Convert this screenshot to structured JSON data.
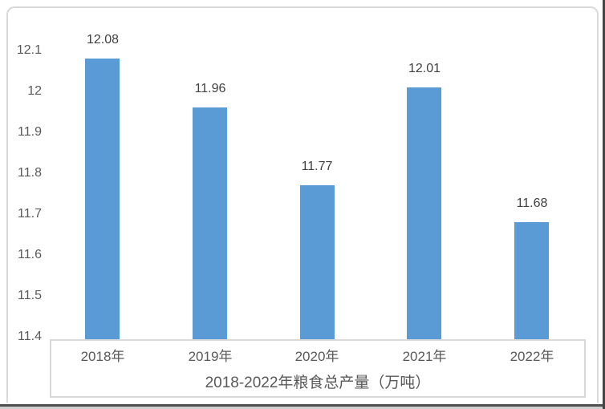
{
  "chart_data": {
    "type": "bar",
    "title": "2018-2022年粮食总产量（万吨）",
    "categories": [
      "2018年",
      "2019年",
      "2020年",
      "2021年",
      "2022年"
    ],
    "values": [
      12.08,
      11.96,
      11.77,
      12.01,
      11.68
    ],
    "value_labels": [
      "12.08",
      "11.96",
      "11.77",
      "12.01",
      "11.68"
    ],
    "yticks": [
      "12.1",
      "12",
      "11.9",
      "11.8",
      "11.7",
      "11.6",
      "11.5",
      "11.4"
    ],
    "ylim": [
      11.4,
      12.1
    ],
    "xlabel": "",
    "ylabel": "",
    "grid": false,
    "legend": false,
    "bar_color": "#5b9bd5",
    "axis_text_color": "#595959",
    "value_label_color": "#404040",
    "frame_border_color": "#d9d9d9"
  }
}
